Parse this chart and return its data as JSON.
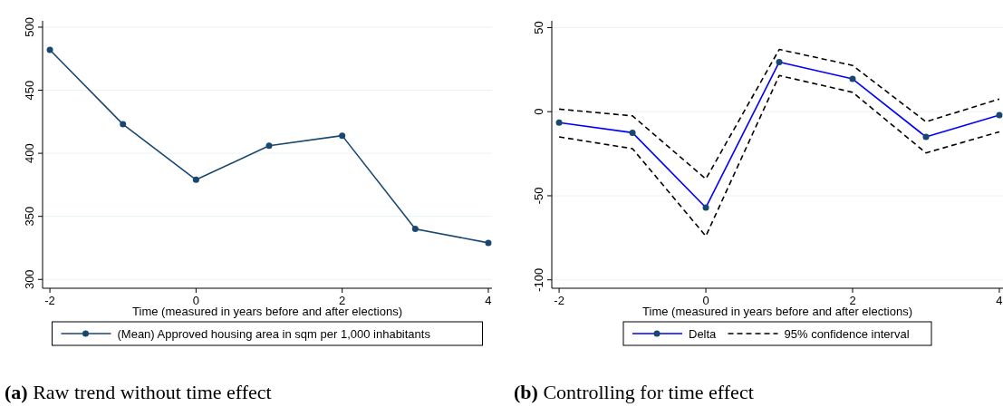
{
  "chart_data": [
    {
      "type": "line",
      "title": "(a) Raw trend without time effect",
      "xlabel": "Time (measured in years before and after elections)",
      "x": [
        -2,
        -1,
        0,
        1,
        2,
        3,
        4
      ],
      "xlim": [
        -2.1,
        4.05
      ],
      "xticks": [
        -2,
        0,
        2,
        4
      ],
      "ylim": [
        293,
        505
      ],
      "yticks": [
        300,
        350,
        400,
        450,
        500
      ],
      "grid": "y",
      "legend": "bottom",
      "marker": "circle",
      "line_style": "solid",
      "series": [
        {
          "name": "(Mean) Approved housing area in sqm per 1,000 inhabitants",
          "color": "#1a476f",
          "values": [
            482,
            423,
            379,
            406,
            414,
            340,
            329
          ]
        }
      ]
    },
    {
      "type": "line",
      "title": "(b) Controlling for time effect",
      "xlabel": "Time (measured in years before and after elections)",
      "x": [
        -2,
        -1,
        0,
        1,
        2,
        3,
        4
      ],
      "xlim": [
        -2.1,
        4.05
      ],
      "xticks": [
        -2,
        0,
        2,
        4
      ],
      "ylim": [
        -105,
        54
      ],
      "yticks": [
        -100,
        -50,
        0,
        50
      ],
      "grid": "y",
      "legend": "bottom",
      "marker": "circle",
      "line_style": "solid",
      "series": [
        {
          "name": "Delta",
          "color": "#0000ff",
          "values": [
            -6.5,
            -12.5,
            -57,
            29.5,
            19.5,
            -15,
            -2
          ]
        },
        {
          "name": "95% confidence interval",
          "color": "#000000",
          "marker": "none",
          "line_style": "dashed",
          "values": [
            1.5,
            -2.5,
            -40,
            37,
            27.5,
            -6,
            7.5
          ]
        },
        {
          "color": "#000000",
          "marker": "none",
          "line_style": "dashed",
          "values": [
            -15,
            -22,
            -74,
            21.5,
            11.5,
            -24.5,
            -12
          ]
        }
      ]
    }
  ]
}
